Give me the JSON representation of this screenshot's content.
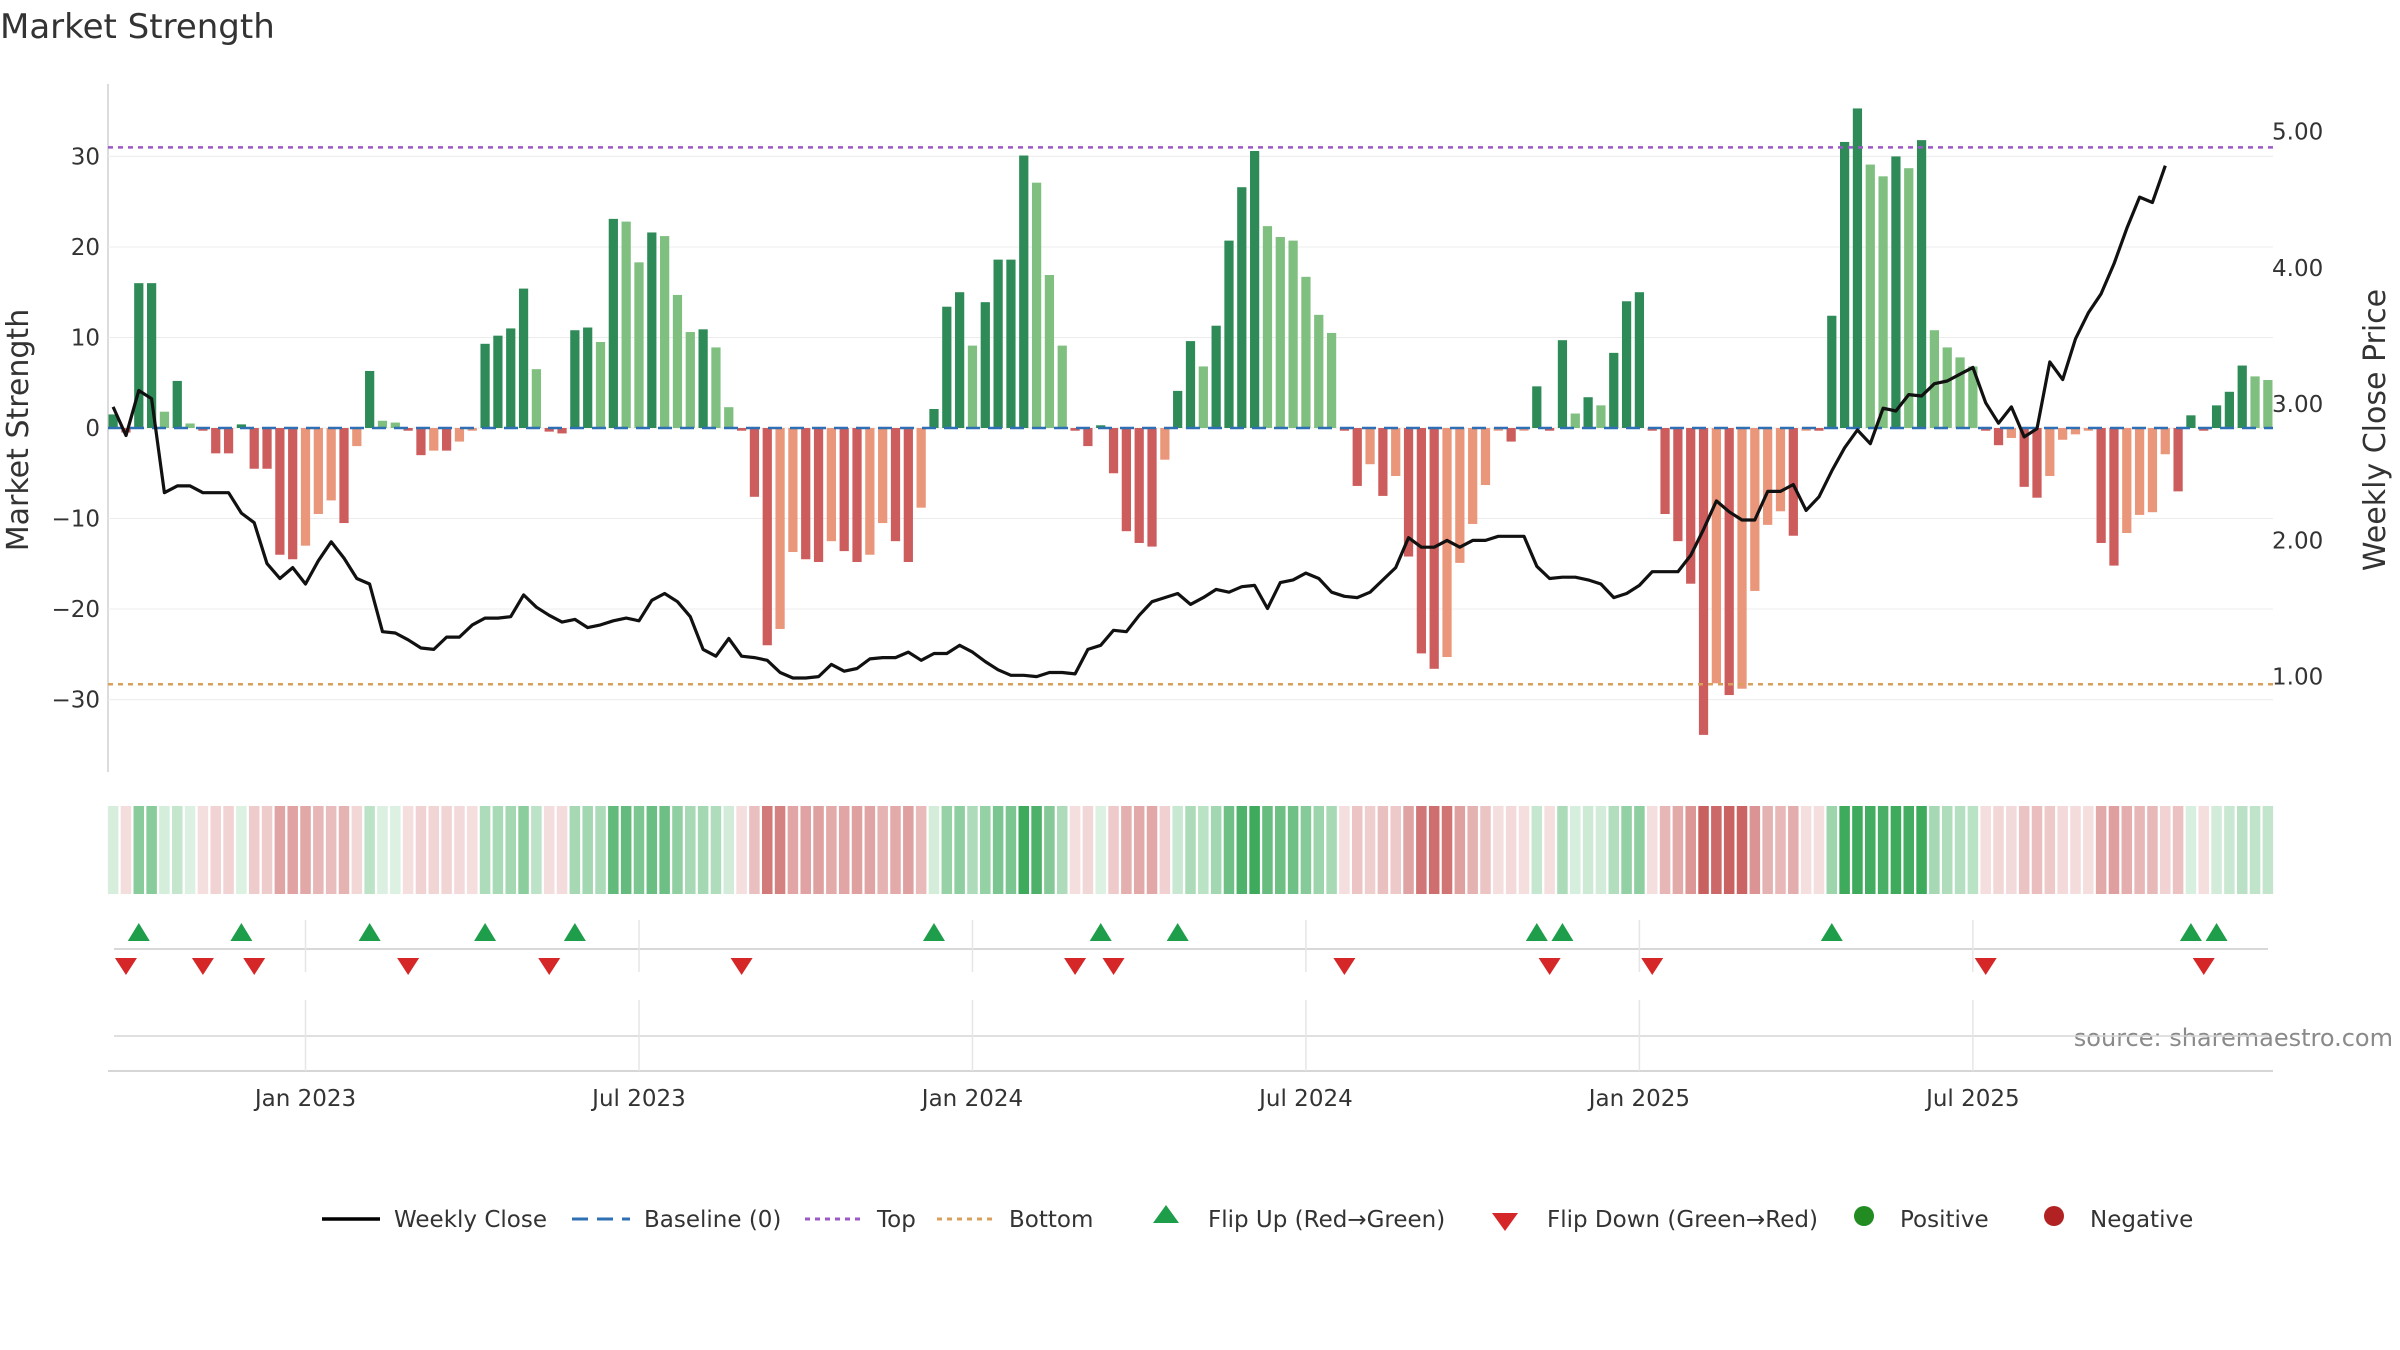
{
  "chart_data": {
    "type": "bar+line",
    "title": "Market Strength",
    "y_left": {
      "label": "Market Strength",
      "range": [
        -38,
        38
      ],
      "ticks": [
        30,
        20,
        10,
        0,
        -10,
        -20,
        -30
      ]
    },
    "y_right": {
      "label": "Weekly Close Price",
      "range": [
        0.3,
        5.35
      ],
      "ticks": [
        5.0,
        4.0,
        3.0,
        2.0,
        1.0
      ],
      "tick_labels": [
        "5.00",
        "4.00",
        "3.00",
        "2.00",
        "1.00"
      ]
    },
    "top_level": 31,
    "bottom_level": -28.3,
    "x_ticks": [
      "Jan 2023",
      "Jul 2023",
      "Jan 2024",
      "Jul 2024",
      "Jan 2025",
      "Jul 2025"
    ],
    "x_tick_weeks": [
      15,
      41,
      67,
      93,
      119,
      145
    ],
    "source": "source: sharemaestro.com",
    "bars": [
      1.5,
      -0.5,
      16,
      16,
      1.8,
      5.2,
      0.5,
      -0.3,
      -2.8,
      -2.8,
      0.4,
      -4.5,
      -4.5,
      -14,
      -14.5,
      -13,
      -9.5,
      -8,
      -10.5,
      -2,
      6.3,
      0.8,
      0.6,
      -0.3,
      -3,
      -2.5,
      -2.5,
      -1.5,
      -0.3,
      9.3,
      10.2,
      11,
      15.4,
      6.5,
      -0.4,
      -0.6,
      10.8,
      11.1,
      9.5,
      23.1,
      22.8,
      18.3,
      21.6,
      21.2,
      14.7,
      10.6,
      10.9,
      8.9,
      2.3,
      -0.3,
      -7.6,
      -24,
      -22.2,
      -13.7,
      -14.5,
      -14.8,
      -12.5,
      -13.6,
      -14.8,
      -14,
      -10.5,
      -12.5,
      -14.8,
      -8.8,
      2.1,
      13.4,
      15,
      9.1,
      13.9,
      18.6,
      18.6,
      30.1,
      27.1,
      16.9,
      9.1,
      -0.3,
      -2,
      0.3,
      -5,
      -11.4,
      -12.7,
      -13.1,
      -3.5,
      4.1,
      9.6,
      6.8,
      11.3,
      20.7,
      26.6,
      30.6,
      22.3,
      21.1,
      20.7,
      16.7,
      12.5,
      10.5,
      -0.3,
      -6.4,
      -4,
      -7.5,
      -5.3,
      -14.2,
      -24.9,
      -26.6,
      -25.3,
      -14.9,
      -10.6,
      -6.3,
      -0.3,
      -1.5,
      -0.3,
      4.6,
      -0.3,
      9.7,
      1.6,
      3.4,
      2.5,
      8.3,
      14,
      15,
      -0.3,
      -9.5,
      -12.5,
      -17.2,
      -33.9,
      -28.2,
      -29.5,
      -28.8,
      -18,
      -10.7,
      -9.2,
      -11.9,
      -0.3,
      -0.3,
      12.4,
      31.6,
      35.3,
      29.1,
      27.8,
      30,
      28.7,
      31.8,
      10.8,
      8.9,
      7.8,
      6.8,
      -0.3,
      -1.9,
      -1.1,
      -6.5,
      -7.7,
      -5.3,
      -1.3,
      -0.7,
      -0.3,
      -12.7,
      -15.2,
      -11.6,
      -9.6,
      -9.3,
      -2.9,
      -7,
      1.4,
      -0.3,
      2.5,
      4,
      6.9,
      5.7,
      5.3
    ],
    "weekly_close": [
      2.98,
      2.77,
      3.1,
      3.04,
      2.35,
      2.4,
      2.4,
      2.35,
      2.35,
      2.35,
      2.2,
      2.13,
      1.83,
      1.72,
      1.8,
      1.68,
      1.85,
      1.99,
      1.87,
      1.72,
      1.68,
      1.33,
      1.32,
      1.27,
      1.21,
      1.2,
      1.29,
      1.29,
      1.38,
      1.43,
      1.43,
      1.44,
      1.6,
      1.51,
      1.45,
      1.4,
      1.42,
      1.36,
      1.38,
      1.41,
      1.43,
      1.41,
      1.56,
      1.61,
      1.55,
      1.44,
      1.2,
      1.15,
      1.28,
      1.15,
      1.14,
      1.12,
      1.03,
      0.99,
      0.99,
      1.0,
      1.09,
      1.04,
      1.06,
      1.13,
      1.14,
      1.14,
      1.18,
      1.12,
      1.17,
      1.17,
      1.23,
      1.18,
      1.11,
      1.05,
      1.01,
      1.01,
      1.0,
      1.03,
      1.03,
      1.02,
      1.2,
      1.23,
      1.34,
      1.33,
      1.45,
      1.55,
      1.58,
      1.61,
      1.53,
      1.58,
      1.64,
      1.62,
      1.66,
      1.67,
      1.5,
      1.69,
      1.71,
      1.76,
      1.72,
      1.62,
      1.59,
      1.58,
      1.62,
      1.71,
      1.8,
      2.02,
      1.95,
      1.95,
      2.0,
      1.95,
      2.0,
      2.0,
      2.03,
      2.03,
      2.03,
      1.81,
      1.72,
      1.73,
      1.73,
      1.71,
      1.68,
      1.58,
      1.61,
      1.67,
      1.77,
      1.77,
      1.77,
      1.89,
      2.08,
      2.29,
      2.21,
      2.15,
      2.15,
      2.36,
      2.36,
      2.41,
      2.22,
      2.32,
      2.51,
      2.68,
      2.81,
      2.71,
      2.97,
      2.95,
      3.07,
      3.06,
      3.15,
      3.17,
      3.22,
      3.27,
      3.01,
      2.86,
      2.98,
      2.76,
      2.82,
      3.31,
      3.18,
      3.48,
      3.67,
      3.81,
      4.03,
      4.29,
      4.52,
      4.48,
      4.75
    ],
    "legend": [
      {
        "label": "Weekly Close",
        "symbol": "line",
        "color": "#000000"
      },
      {
        "label": "Baseline (0)",
        "symbol": "dash",
        "color": "#2f6fb3"
      },
      {
        "label": "Top",
        "symbol": "dotted",
        "color": "#9b59c6"
      },
      {
        "label": "Bottom",
        "symbol": "dotted",
        "color": "#d9a05b"
      },
      {
        "label": "Flip Up (Red→Green)",
        "symbol": "triangle-up",
        "color": "#1e9e4a"
      },
      {
        "label": "Flip Down (Green→Red)",
        "symbol": "triangle-down",
        "color": "#d62728"
      },
      {
        "label": "Positive",
        "symbol": "circle",
        "color": "#228b22"
      },
      {
        "label": "Negative",
        "symbol": "circle",
        "color": "#b22222"
      }
    ],
    "colors": {
      "pos_strong": "#2e8b57",
      "pos_weak": "#7fbf7f",
      "neg_strong": "#cd5c5c",
      "neg_weak": "#e9967a",
      "baseline": "#2f6fb3",
      "top": "#9b59c6",
      "bottom": "#d9a05b",
      "flip_up": "#1e9e4a",
      "flip_down": "#d62728",
      "line": "#111111"
    }
  }
}
